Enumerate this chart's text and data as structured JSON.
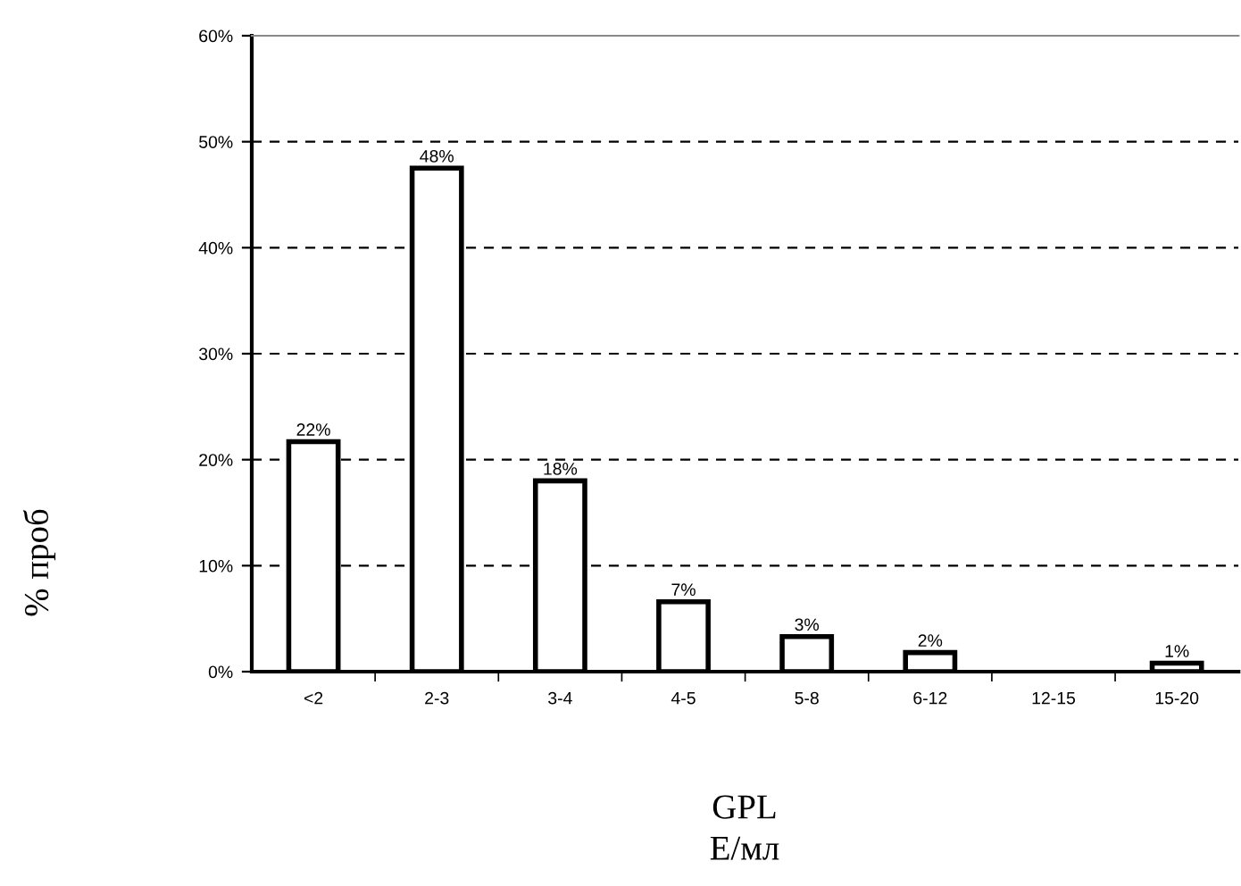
{
  "chart_data": {
    "type": "bar",
    "xlabel": "GPL\nЕ/мл",
    "ylabel": "% проб",
    "categories": [
      "<2",
      "2-3",
      "3-4",
      "4-5",
      "5-8",
      "6-12",
      "12-15",
      "15-20"
    ],
    "values": [
      21.7,
      47.5,
      18,
      6.6,
      3.3,
      1.8,
      null,
      0.8
    ],
    "value_labels": [
      "22%",
      "48%",
      "18%",
      "7%",
      "3%",
      "2%",
      null,
      "1%"
    ],
    "color": "#ffffff",
    "ylim": [
      0,
      60
    ],
    "yticks": [
      {
        "value": 0,
        "label": "0%"
      },
      {
        "value": 10,
        "label": "10%"
      },
      {
        "value": 20,
        "label": "20%"
      },
      {
        "value": 30,
        "label": "30%"
      },
      {
        "value": 40,
        "label": "40%"
      },
      {
        "value": 50,
        "label": "50%"
      },
      {
        "value": 60,
        "label": "60%"
      }
    ],
    "grid": "y",
    "legend": false
  }
}
